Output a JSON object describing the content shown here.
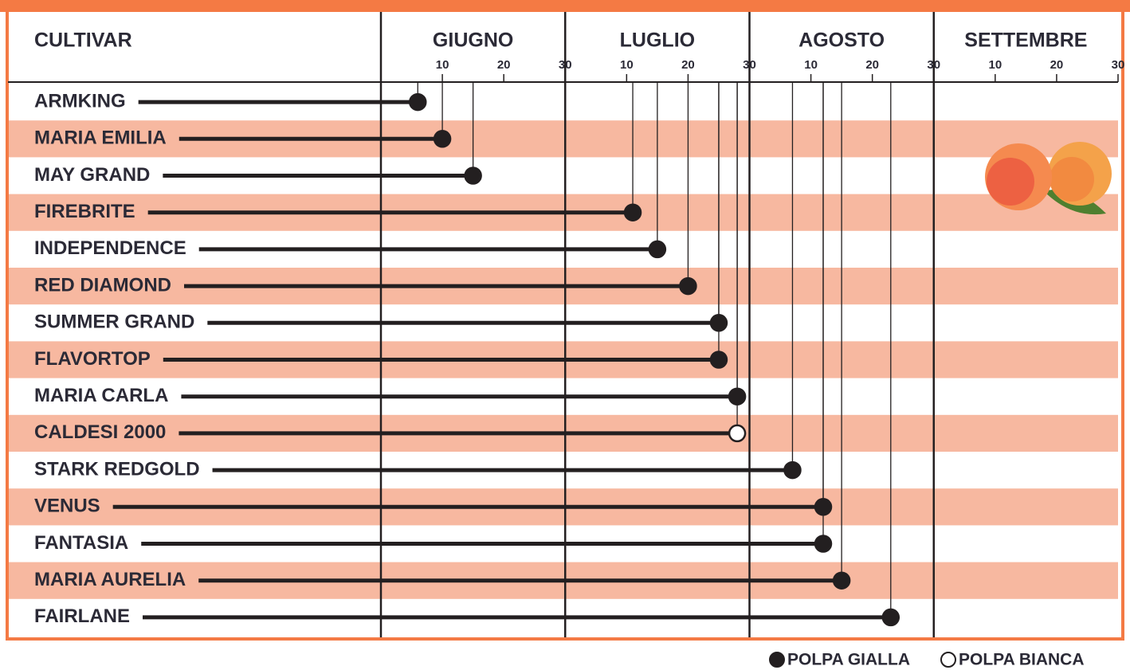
{
  "chart_data": {
    "type": "lollipop",
    "column_header": "CULTIVAR",
    "months": [
      "GIUGNO",
      "LUGLIO",
      "AGOSTO",
      "SETTEMBRE"
    ],
    "categories": [
      "ARMKING",
      "MARIA EMILIA",
      "MAY GRAND",
      "FIREBRITE",
      "INDEPENDENCE",
      "RED DIAMOND",
      "SUMMER GRAND",
      "FLAVORTOP",
      "MARIA CARLA",
      "CALDESI 2000",
      "STARK REDGOLD",
      "VENUS",
      "FANTASIA",
      "MARIA AURELIA",
      "FAIRLANE"
    ],
    "series": [
      {
        "name": "POLPA GIALLA",
        "color": "#231f20",
        "values": [
          6,
          10,
          15,
          41,
          45,
          50,
          55,
          55,
          58,
          null,
          67,
          72,
          72,
          75,
          83
        ]
      },
      {
        "name": "POLPA BIANCA",
        "color": "#ffffff",
        "values": [
          null,
          null,
          null,
          null,
          null,
          null,
          null,
          null,
          null,
          58,
          null,
          null,
          null,
          null,
          null
        ]
      }
    ],
    "xlim": [
      0,
      120
    ],
    "xticks": [
      10,
      20,
      30,
      {
        "value": 40,
        "label": "10"
      },
      {
        "value": 50,
        "label": "20"
      },
      {
        "value": 60,
        "label": "30"
      },
      {
        "value": 70,
        "label": "10"
      },
      {
        "value": 80,
        "label": "20"
      },
      {
        "value": 90,
        "label": "30"
      },
      {
        "value": 100,
        "label": "10"
      },
      {
        "value": 110,
        "label": "20"
      },
      {
        "value": 120,
        "label": "30"
      }
    ],
    "row_color": "#f7b8a0",
    "frame_color": "#f47a44"
  }
}
